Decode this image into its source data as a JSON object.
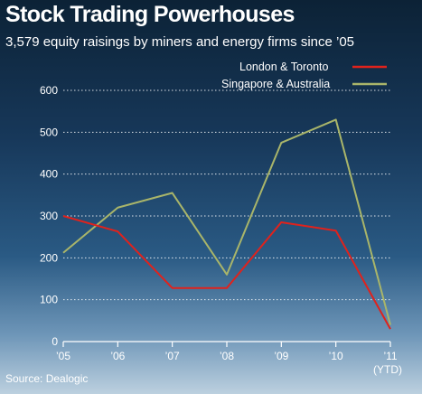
{
  "title": "Stock Trading Powerhouses",
  "subtitle": "3,579 equity raisings by miners and energy firms since ’05",
  "source": "Source: Dealogic",
  "colors": {
    "london_toronto": "#e0221c",
    "singapore_australia": "#a9b56a",
    "grid": "#ffffff",
    "axis": "#ffffff"
  },
  "chart_data": {
    "type": "line",
    "x": [
      "’05",
      "’06",
      "’07",
      "’08",
      "’09",
      "’10",
      "’11"
    ],
    "x_sublabel": "(YTD)",
    "ylim": [
      0,
      600
    ],
    "yticks": [
      0,
      100,
      200,
      300,
      400,
      500,
      600
    ],
    "grid": "horizontal dashed",
    "legend_position": "top-right",
    "series": [
      {
        "name": "London & Toronto",
        "values": [
          300,
          263,
          128,
          128,
          285,
          265,
          30
        ]
      },
      {
        "name": "Singapore & Australia",
        "values": [
          212,
          320,
          355,
          160,
          475,
          530,
          40
        ]
      }
    ]
  }
}
